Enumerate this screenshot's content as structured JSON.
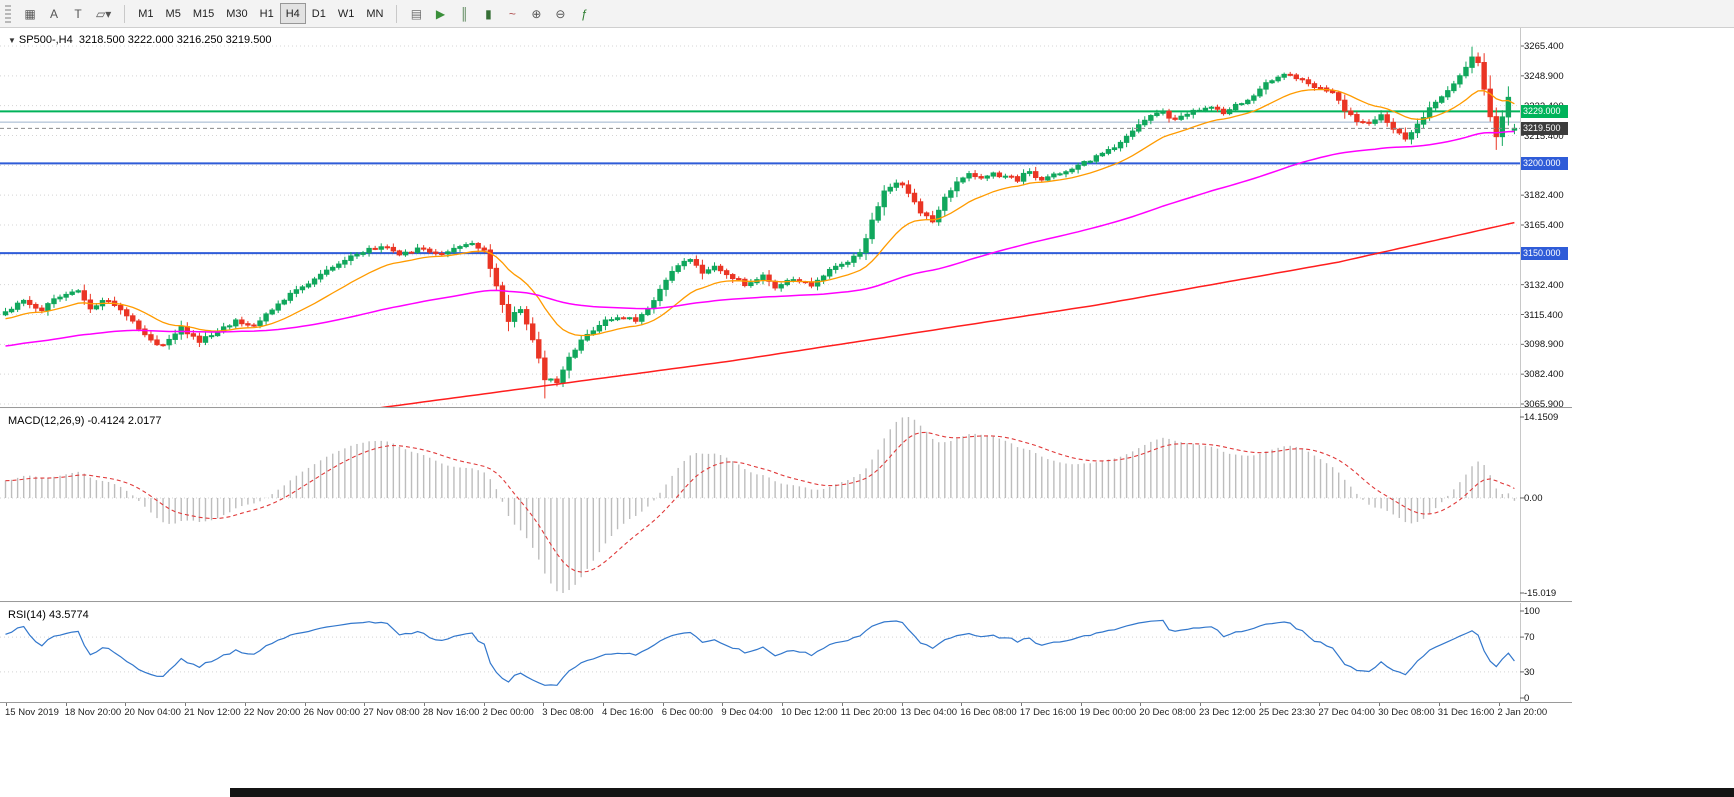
{
  "toolbar": {
    "left_icons": [
      {
        "name": "chart-window-icon",
        "glyph": "▦"
      },
      {
        "name": "cursor-text-a-icon",
        "glyph": "A"
      },
      {
        "name": "text-tool-icon",
        "glyph": "T"
      },
      {
        "name": "shapes-dropdown-icon",
        "glyph": "▱▾"
      }
    ],
    "timeframes": [
      "M1",
      "M5",
      "M15",
      "M30",
      "H1",
      "H4",
      "D1",
      "W1",
      "MN"
    ],
    "active_timeframe": "H4",
    "right_icons": [
      {
        "name": "new-order-icon",
        "glyph": "▤",
        "color": "#6d6d6d"
      },
      {
        "name": "autotrading-icon",
        "glyph": "▶",
        "color": "#3a8f3a"
      },
      {
        "name": "chart-bars-icon",
        "glyph": "║",
        "color": "#4e7d4e"
      },
      {
        "name": "chart-candles-icon",
        "glyph": "▮",
        "color": "#356e35"
      },
      {
        "name": "chart-line-icon",
        "glyph": "~",
        "color": "#b05050"
      },
      {
        "name": "zoom-in-icon",
        "glyph": "⊕",
        "color": "#555555"
      },
      {
        "name": "zoom-out-icon",
        "glyph": "⊖",
        "color": "#555555"
      },
      {
        "name": "indicators-icon",
        "glyph": "ƒ",
        "color": "#2e7d32"
      }
    ]
  },
  "chart_data": {
    "type": "candlestick",
    "symbol": "SP500-",
    "timeframe": "H4",
    "title_symbol": "SP500-,H4",
    "title_ohlc_text": "3218.500 3222.000 3216.250 3219.500",
    "candle_count": 250,
    "price_axis": {
      "top": 3265.4,
      "bottom": 3065.9,
      "labels": [
        "3265.400",
        "3248.900",
        "3232.400",
        "3215.400",
        "3198.900",
        "3182.400",
        "3165.400",
        "3148.900",
        "3132.400",
        "3115.400",
        "3098.900",
        "3082.400",
        "3065.900"
      ]
    },
    "time_labels": [
      "15 Nov 2019",
      "18 Nov 20:00",
      "20 Nov 04:00",
      "21 Nov 12:00",
      "22 Nov 20:00",
      "26 Nov 00:00",
      "27 Nov 08:00",
      "28 Nov 16:00",
      "2 Dec 00:00",
      "3 Dec 08:00",
      "4 Dec 16:00",
      "6 Dec 00:00",
      "9 Dec 04:00",
      "10 Dec 12:00",
      "11 Dec 20:00",
      "13 Dec 04:00",
      "16 Dec 08:00",
      "17 Dec 16:00",
      "19 Dec 00:00",
      "20 Dec 08:00",
      "23 Dec 12:00",
      "25 Dec 23:30",
      "27 Dec 04:00",
      "30 Dec 08:00",
      "31 Dec 16:00",
      "2 Jan 20:00"
    ],
    "price_anchors": [
      [
        0,
        3117
      ],
      [
        3,
        3123
      ],
      [
        6,
        3119
      ],
      [
        9,
        3126
      ],
      [
        12,
        3129
      ],
      [
        14,
        3120
      ],
      [
        17,
        3124
      ],
      [
        20,
        3115
      ],
      [
        23,
        3104
      ],
      [
        26,
        3098
      ],
      [
        29,
        3108
      ],
      [
        32,
        3101
      ],
      [
        35,
        3106
      ],
      [
        38,
        3112
      ],
      [
        41,
        3109
      ],
      [
        44,
        3118
      ],
      [
        47,
        3127
      ],
      [
        50,
        3133
      ],
      [
        53,
        3140
      ],
      [
        56,
        3147
      ],
      [
        59,
        3151
      ],
      [
        62,
        3154
      ],
      [
        65,
        3149
      ],
      [
        68,
        3152
      ],
      [
        71,
        3150
      ],
      [
        74,
        3152
      ],
      [
        77,
        3156
      ],
      [
        79,
        3151
      ],
      [
        81,
        3131
      ],
      [
        83,
        3113
      ],
      [
        85,
        3119
      ],
      [
        87,
        3102
      ],
      [
        89,
        3080
      ],
      [
        91,
        3078
      ],
      [
        93,
        3091
      ],
      [
        95,
        3102
      ],
      [
        98,
        3110
      ],
      [
        101,
        3115
      ],
      [
        104,
        3112
      ],
      [
        107,
        3123
      ],
      [
        109,
        3135
      ],
      [
        111,
        3144
      ],
      [
        113,
        3147
      ],
      [
        115,
        3139
      ],
      [
        117,
        3143
      ],
      [
        119,
        3138
      ],
      [
        122,
        3133
      ],
      [
        125,
        3137
      ],
      [
        127,
        3130
      ],
      [
        130,
        3136
      ],
      [
        133,
        3132
      ],
      [
        136,
        3141
      ],
      [
        139,
        3145
      ],
      [
        141,
        3150
      ],
      [
        143,
        3168
      ],
      [
        145,
        3184
      ],
      [
        147,
        3190
      ],
      [
        149,
        3184
      ],
      [
        151,
        3173
      ],
      [
        153,
        3168
      ],
      [
        155,
        3181
      ],
      [
        157,
        3189
      ],
      [
        159,
        3195
      ],
      [
        161,
        3191
      ],
      [
        163,
        3195
      ],
      [
        165,
        3192
      ],
      [
        167,
        3191
      ],
      [
        169,
        3196
      ],
      [
        171,
        3190
      ],
      [
        173,
        3193
      ],
      [
        175,
        3195
      ],
      [
        177,
        3198
      ],
      [
        179,
        3202
      ],
      [
        181,
        3205
      ],
      [
        183,
        3209
      ],
      [
        185,
        3216
      ],
      [
        187,
        3222
      ],
      [
        189,
        3226
      ],
      [
        191,
        3228
      ],
      [
        193,
        3224
      ],
      [
        195,
        3228
      ],
      [
        197,
        3230
      ],
      [
        199,
        3232
      ],
      [
        201,
        3228
      ],
      [
        203,
        3232
      ],
      [
        205,
        3236
      ],
      [
        207,
        3241
      ],
      [
        209,
        3247
      ],
      [
        211,
        3250
      ],
      [
        213,
        3247
      ],
      [
        215,
        3244
      ],
      [
        217,
        3242
      ],
      [
        219,
        3239
      ],
      [
        221,
        3230
      ],
      [
        223,
        3223
      ],
      [
        225,
        3222
      ],
      [
        227,
        3226
      ],
      [
        229,
        3218
      ],
      [
        231,
        3214
      ],
      [
        233,
        3222
      ],
      [
        235,
        3230
      ],
      [
        237,
        3238
      ],
      [
        239,
        3244
      ],
      [
        241,
        3253
      ],
      [
        242,
        3260
      ],
      [
        243,
        3257
      ],
      [
        244,
        3241
      ],
      [
        245,
        3226
      ],
      [
        246,
        3214
      ],
      [
        247,
        3225
      ],
      [
        248,
        3236
      ],
      [
        249,
        3219.5
      ]
    ],
    "wick_overrides": [
      [
        89,
        "low",
        3069.0
      ],
      [
        242,
        "high",
        3265.0
      ],
      [
        246,
        "low",
        3207.5
      ]
    ],
    "last_candle": {
      "open": 3218.5,
      "high": 3222.0,
      "low": 3216.25,
      "close": 3219.5
    },
    "levels": [
      {
        "price": 3229.0,
        "color": "#00b35a",
        "width": 2,
        "badge": "3229.000"
      },
      {
        "price": 3223.0,
        "color": "#9db3cd",
        "width": 1,
        "badge": ""
      },
      {
        "price": 3200.0,
        "color": "#2f5cd8",
        "width": 2,
        "badge": "3200.000"
      },
      {
        "price": 3150.0,
        "color": "#2f5cd8",
        "width": 2,
        "badge": "3150.000"
      }
    ],
    "current_price": {
      "value": 3219.5,
      "badge": "3219.500",
      "badge_bg": "#3c3c3c",
      "line_color": "#8a8a8a"
    },
    "moving_averages": [
      {
        "name": "ma-fast",
        "type": "ema",
        "period": 16,
        "color": "#ff9b00",
        "width": 1.3
      },
      {
        "name": "ma-mid",
        "type": "ema",
        "period": 90,
        "color": "#ff00ff",
        "width": 1.5
      },
      {
        "name": "ma-slow",
        "type": "anchors",
        "color": "#ff1e1e",
        "width": 1.5,
        "anchors": [
          [
            0,
            3037
          ],
          [
            60,
            3063
          ],
          [
            120,
            3090
          ],
          [
            180,
            3121
          ],
          [
            220,
            3145
          ],
          [
            249,
            3167
          ]
        ]
      }
    ],
    "macd": {
      "label": "MACD(12,26,9)",
      "value_main": "-0.4124",
      "value_signal": "2.0177",
      "fast": 12,
      "slow": 26,
      "signal": 9,
      "ymax": 14.1509,
      "ymin": -15.019,
      "ymax_label": "14.1509",
      "ymin_label": "-15.019",
      "zero_label": "0.00",
      "hist_color": "#bdbdbd",
      "signal_color": "#e03a3a"
    },
    "rsi": {
      "label": "RSI(14)",
      "period": 14,
      "value": "43.5774",
      "axis_labels": [
        "100",
        "70",
        "30",
        "0"
      ],
      "axis_values": [
        100,
        70,
        30,
        0
      ],
      "level_lines": [
        70,
        30
      ],
      "line_color": "#3277cc"
    },
    "colors": {
      "bull": "#11a75c",
      "bear": "#ea3524",
      "grid": "#d4d4d4",
      "axis_line": "#c8c8c8"
    }
  }
}
